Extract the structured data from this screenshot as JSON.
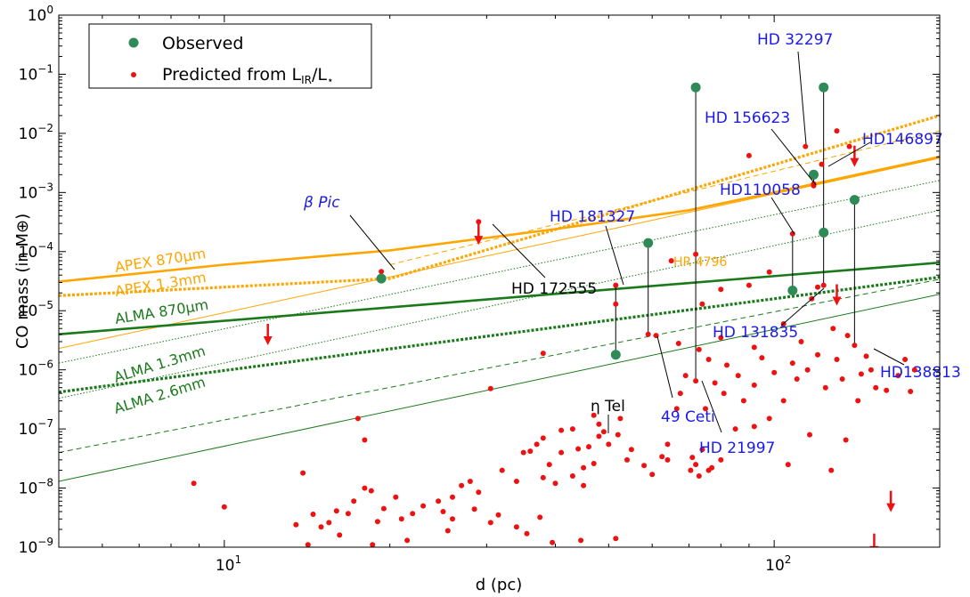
{
  "chart_data": {
    "type": "scatter",
    "xlabel": "d (pc)",
    "ylabel": "CO mass (in M⊕)",
    "x_scale": "log",
    "y_scale": "log",
    "xlim": [
      5.0,
      200.0
    ],
    "ylim": [
      1e-09,
      1.0
    ],
    "grid": false,
    "legend_position": "top-left",
    "colors": {
      "observed": "#2e8b57",
      "predicted": "#ee1111",
      "apex": "#ffa500",
      "alma": "#1a7a1a",
      "star_label": "#1a1aee",
      "axis": "#000000"
    },
    "x_tick_labels": [
      {
        "value": 10,
        "base": "10",
        "exp": "1"
      },
      {
        "value": 100,
        "base": "10",
        "exp": "2"
      }
    ],
    "y_tick_labels": [
      {
        "value": 1e-09,
        "base": "10",
        "exp": "−9"
      },
      {
        "value": 1e-08,
        "base": "10",
        "exp": "−8"
      },
      {
        "value": 1e-07,
        "base": "10",
        "exp": "−7"
      },
      {
        "value": 1e-06,
        "base": "10",
        "exp": "−6"
      },
      {
        "value": 1e-05,
        "base": "10",
        "exp": "−5"
      },
      {
        "value": 0.0001,
        "base": "10",
        "exp": "−4"
      },
      {
        "value": 0.001,
        "base": "10",
        "exp": "−3"
      },
      {
        "value": 0.01,
        "base": "10",
        "exp": "−2"
      },
      {
        "value": 0.1,
        "base": "10",
        "exp": "−1"
      },
      {
        "value": 1,
        "base": "10",
        "exp": "0"
      }
    ],
    "legend": [
      {
        "kind": "observed",
        "label": "Observed"
      },
      {
        "kind": "predicted",
        "label": "Predicted from L",
        "sub": "IR",
        "label_mid": "/L",
        "sub2": "⋆"
      }
    ],
    "sensitivity_lines": [
      {
        "label": "APEX 870μm",
        "color": "#ffa500",
        "style": "solid",
        "width": 2.6,
        "x": [
          5.0,
          10.0,
          20.0,
          40.0,
          70.0,
          100.0,
          200.0
        ],
        "y": [
          3.1e-05,
          6e-05,
          0.000105,
          0.00024,
          0.0005,
          0.001,
          0.004
        ]
      },
      {
        "label": "APEX 1.3mm",
        "color": "#ffa500",
        "style": "dotted",
        "width": 3.2,
        "x": [
          5.0,
          20.0,
          200.0
        ],
        "y": [
          1.8e-05,
          3.5e-05,
          0.02
        ]
      },
      {
        "label": "",
        "color": "#ffa500",
        "style": "dashed",
        "width": 1.0,
        "x": [
          20.0,
          200.0
        ],
        "y": [
          6e-05,
          0.011
        ]
      },
      {
        "label": "",
        "color": "#ffa500",
        "style": "solid",
        "width": 1.0,
        "x": [
          5.0,
          200.0
        ],
        "y": [
          2.3e-06,
          0.0038
        ]
      },
      {
        "label": "ALMA 870μm",
        "color": "#1a7a1a",
        "style": "solid",
        "width": 2.6,
        "x": [
          5.0,
          200.0
        ],
        "y": [
          4e-06,
          6.5e-05
        ]
      },
      {
        "label": "ALMA 1.3mm",
        "color": "#1a7a1a",
        "style": "dotted",
        "width": 3.2,
        "x": [
          5.0,
          200.0
        ],
        "y": [
          4.2e-07,
          3.7e-05
        ]
      },
      {
        "label": "ALMA 2.6mm",
        "color": "#1a7a1a",
        "style": "dotted",
        "width": 1.0,
        "x": [
          5.0,
          200.0
        ],
        "y": [
          3.3e-07,
          0.0005
        ]
      },
      {
        "label": "",
        "color": "#1a7a1a",
        "style": "dotted",
        "width": 1.0,
        "x": [
          5.0,
          200.0
        ],
        "y": [
          1.3e-06,
          0.0016
        ]
      },
      {
        "label": "",
        "color": "#1a7a1a",
        "style": "dashed",
        "width": 1.0,
        "x": [
          5.0,
          200.0
        ],
        "y": [
          4e-08,
          3.4e-05
        ]
      },
      {
        "label": "",
        "color": "#1a7a1a",
        "style": "solid",
        "width": 1.0,
        "x": [
          5.0,
          200.0
        ],
        "y": [
          1.3e-08,
          1.9e-05
        ]
      }
    ],
    "observed_points": [
      {
        "x": 19.3,
        "y": 3.5e-05
      },
      {
        "x": 51.5,
        "y": 1.8e-06
      },
      {
        "x": 59.0,
        "y": 0.00014
      },
      {
        "x": 72.0,
        "y": 0.06
      },
      {
        "x": 108.0,
        "y": 2.2e-05
      },
      {
        "x": 118.0,
        "y": 0.002
      },
      {
        "x": 123.0,
        "y": 0.06
      },
      {
        "x": 123.0,
        "y": 0.00021
      },
      {
        "x": 140.0,
        "y": 0.00075
      }
    ],
    "vertical_links": [
      {
        "x": 51.5,
        "y": [
          1.8e-06,
          2.7e-05
        ]
      },
      {
        "x": 59.0,
        "y": [
          4e-06,
          0.00014
        ]
      },
      {
        "x": 72.0,
        "y": [
          6.5e-07,
          0.06
        ]
      },
      {
        "x": 108.0,
        "y": [
          0.0002,
          2.2e-05
        ]
      },
      {
        "x": 118.0,
        "y": [
          0.0013,
          0.002
        ]
      },
      {
        "x": 123.0,
        "y": [
          2.7e-05,
          0.06
        ]
      },
      {
        "x": 140.0,
        "y": [
          2.6e-06,
          0.00075
        ]
      }
    ],
    "upper_limits": [
      {
        "x": 12.0,
        "y": 6e-06
      },
      {
        "x": 29.0,
        "y": 0.0003
      },
      {
        "x": 130.0,
        "y": 2.8e-05
      },
      {
        "x": 140.0,
        "y": 0.0062
      },
      {
        "x": 163.0,
        "y": 9e-09
      },
      {
        "x": 152.0,
        "y": 1.7e-09
      }
    ],
    "predicted_points": [
      {
        "x": 19.3,
        "y": 4.6e-05
      },
      {
        "x": 29.0,
        "y": 0.00032
      },
      {
        "x": 51.5,
        "y": 2.7e-05
      },
      {
        "x": 51.5,
        "y": 1.3e-05
      },
      {
        "x": 59.0,
        "y": 4e-06
      },
      {
        "x": 72.0,
        "y": 6.5e-07
      },
      {
        "x": 108.0,
        "y": 0.0002
      },
      {
        "x": 118.0,
        "y": 0.0013
      },
      {
        "x": 123.0,
        "y": 2.7e-05
      },
      {
        "x": 140.0,
        "y": 2.6e-06
      },
      {
        "x": 114.0,
        "y": 0.006
      },
      {
        "x": 122.0,
        "y": 0.003
      },
      {
        "x": 137.0,
        "y": 0.006
      },
      {
        "x": 118.0,
        "y": 0.0014
      },
      {
        "x": 130.0,
        "y": 0.011
      },
      {
        "x": 90.0,
        "y": 0.0042
      },
      {
        "x": 65.0,
        "y": 7e-05
      },
      {
        "x": 72.0,
        "y": 9e-05
      },
      {
        "x": 98.0,
        "y": 4.5e-05
      },
      {
        "x": 74.0,
        "y": 1.3e-05
      },
      {
        "x": 80.0,
        "y": 2.3e-05
      },
      {
        "x": 90.0,
        "y": 2.7e-05
      },
      {
        "x": 120.0,
        "y": 2.5e-05
      },
      {
        "x": 117.0,
        "y": 1.6e-05
      },
      {
        "x": 128.0,
        "y": 5e-06
      },
      {
        "x": 136.0,
        "y": 3.8e-06
      },
      {
        "x": 104.0,
        "y": 6e-06
      },
      {
        "x": 112.0,
        "y": 3e-06
      },
      {
        "x": 80.0,
        "y": 3.5e-06
      },
      {
        "x": 67.0,
        "y": 2.8e-06
      },
      {
        "x": 73.0,
        "y": 2.2e-06
      },
      {
        "x": 92.0,
        "y": 2.4e-06
      },
      {
        "x": 76.0,
        "y": 1.5e-06
      },
      {
        "x": 82.0,
        "y": 1.2e-06
      },
      {
        "x": 95.0,
        "y": 1.6e-06
      },
      {
        "x": 108.0,
        "y": 1.3e-06
      },
      {
        "x": 120.0,
        "y": 1.8e-06
      },
      {
        "x": 130.0,
        "y": 1.5e-06
      },
      {
        "x": 86.0,
        "y": 8e-07
      },
      {
        "x": 92.0,
        "y": 5.5e-07
      },
      {
        "x": 100.0,
        "y": 9e-07
      },
      {
        "x": 115.0,
        "y": 1e-06
      },
      {
        "x": 124.0,
        "y": 5e-07
      },
      {
        "x": 144.0,
        "y": 8.5e-07
      },
      {
        "x": 153.0,
        "y": 5e-07
      },
      {
        "x": 160.0,
        "y": 4.5e-07
      },
      {
        "x": 168.0,
        "y": 8e-07
      },
      {
        "x": 173.0,
        "y": 1.5e-06
      },
      {
        "x": 180.0,
        "y": 1e-06
      },
      {
        "x": 177.0,
        "y": 4.3e-07
      },
      {
        "x": 110.0,
        "y": 7e-07
      },
      {
        "x": 133.0,
        "y": 7e-07
      },
      {
        "x": 142.0,
        "y": 3e-07
      },
      {
        "x": 104.0,
        "y": 3e-07
      },
      {
        "x": 150.0,
        "y": 1e-06
      },
      {
        "x": 78.0,
        "y": 6e-07
      },
      {
        "x": 81.0,
        "y": 4e-07
      },
      {
        "x": 88.0,
        "y": 3e-07
      },
      {
        "x": 98.0,
        "y": 1.5e-07
      },
      {
        "x": 135.0,
        "y": 6.5e-08
      },
      {
        "x": 147.0,
        "y": 1.7e-06
      },
      {
        "x": 106.0,
        "y": 2.5e-08
      },
      {
        "x": 116.0,
        "y": 8e-08
      },
      {
        "x": 127.0,
        "y": 2e-08
      },
      {
        "x": 92.0,
        "y": 1.1e-07
      },
      {
        "x": 80.0,
        "y": 3e-08
      },
      {
        "x": 74.0,
        "y": 4.5e-08
      },
      {
        "x": 71.0,
        "y": 3.3e-08
      },
      {
        "x": 72.0,
        "y": 2.5e-08
      },
      {
        "x": 73.0,
        "y": 1.6e-08
      },
      {
        "x": 76.0,
        "y": 2e-08
      },
      {
        "x": 70.5,
        "y": 2e-08
      },
      {
        "x": 85.0,
        "y": 1e-07
      },
      {
        "x": 60.0,
        "y": 1.7e-08
      },
      {
        "x": 58.0,
        "y": 2.4e-08
      },
      {
        "x": 55.0,
        "y": 4.5e-08
      },
      {
        "x": 52.0,
        "y": 8e-08
      },
      {
        "x": 48.0,
        "y": 1.2e-07
      },
      {
        "x": 46.0,
        "y": 5e-08
      },
      {
        "x": 44.0,
        "y": 4.6e-08
      },
      {
        "x": 45.0,
        "y": 2.2e-08
      },
      {
        "x": 47.0,
        "y": 2.6e-08
      },
      {
        "x": 48.0,
        "y": 7.5e-08
      },
      {
        "x": 43.0,
        "y": 1.6e-08
      },
      {
        "x": 41.0,
        "y": 4e-08
      },
      {
        "x": 40.0,
        "y": 1.2e-08
      },
      {
        "x": 38.0,
        "y": 7e-08
      },
      {
        "x": 37.0,
        "y": 5.5e-08
      },
      {
        "x": 36.0,
        "y": 4.2e-08
      },
      {
        "x": 35.0,
        "y": 4e-08
      },
      {
        "x": 39.0,
        "y": 2.5e-08
      },
      {
        "x": 38.0,
        "y": 1.5e-08
      },
      {
        "x": 34.0,
        "y": 1.3e-08
      },
      {
        "x": 32.0,
        "y": 2e-08
      },
      {
        "x": 29.0,
        "y": 8.5e-09
      },
      {
        "x": 27.0,
        "y": 1.1e-08
      },
      {
        "x": 28.0,
        "y": 1.3e-08
      },
      {
        "x": 26.0,
        "y": 7e-09
      },
      {
        "x": 25.0,
        "y": 4e-09
      },
      {
        "x": 26.0,
        "y": 3e-09
      },
      {
        "x": 24.5,
        "y": 6e-09
      },
      {
        "x": 23.0,
        "y": 5e-09
      },
      {
        "x": 22.0,
        "y": 3.7e-09
      },
      {
        "x": 21.0,
        "y": 3e-09
      },
      {
        "x": 20.5,
        "y": 7e-09
      },
      {
        "x": 19.5,
        "y": 4.5e-09
      },
      {
        "x": 19.0,
        "y": 2.7e-09
      },
      {
        "x": 18.5,
        "y": 9e-09
      },
      {
        "x": 18.0,
        "y": 1e-08
      },
      {
        "x": 17.2,
        "y": 6e-09
      },
      {
        "x": 16.8,
        "y": 3.7e-09
      },
      {
        "x": 16.0,
        "y": 4.1e-09
      },
      {
        "x": 15.5,
        "y": 2.6e-09
      },
      {
        "x": 15.0,
        "y": 2.2e-09
      },
      {
        "x": 14.5,
        "y": 3.6e-09
      },
      {
        "x": 16.2,
        "y": 1.6e-09
      },
      {
        "x": 18.6,
        "y": 1.1e-09
      },
      {
        "x": 21.5,
        "y": 1.3e-09
      },
      {
        "x": 14.2,
        "y": 1.1e-09
      },
      {
        "x": 13.5,
        "y": 2.4e-09
      },
      {
        "x": 17.5,
        "y": 1.5e-07
      },
      {
        "x": 18.0,
        "y": 6.5e-08
      },
      {
        "x": 13.9,
        "y": 1.8e-08
      },
      {
        "x": 8.8,
        "y": 1.2e-08
      },
      {
        "x": 10.0,
        "y": 4.8e-09
      },
      {
        "x": 30.5,
        "y": 2.6e-09
      },
      {
        "x": 25.5,
        "y": 1.9e-09
      },
      {
        "x": 34.0,
        "y": 2.2e-09
      },
      {
        "x": 31.5,
        "y": 3.5e-09
      },
      {
        "x": 28.5,
        "y": 4.4e-09
      },
      {
        "x": 35.5,
        "y": 1.7e-09
      },
      {
        "x": 37.5,
        "y": 3.2e-09
      },
      {
        "x": 39.5,
        "y": 1.2e-09
      },
      {
        "x": 44.5,
        "y": 1.3e-09
      },
      {
        "x": 51.5,
        "y": 1.4e-09
      },
      {
        "x": 30.5,
        "y": 4.8e-07
      },
      {
        "x": 38.0,
        "y": 1.9e-06
      },
      {
        "x": 43.0,
        "y": 1e-07
      },
      {
        "x": 47.0,
        "y": 1.7e-07
      },
      {
        "x": 41.0,
        "y": 9.5e-08
      },
      {
        "x": 50.0,
        "y": 5.5e-08
      },
      {
        "x": 52.5,
        "y": 1.5e-07
      },
      {
        "x": 49.0,
        "y": 9e-08
      },
      {
        "x": 45.0,
        "y": 1.1e-08
      },
      {
        "x": 54.0,
        "y": 3e-08
      },
      {
        "x": 62.5,
        "y": 3.4e-08
      },
      {
        "x": 64.0,
        "y": 3e-08
      },
      {
        "x": 66.5,
        "y": 2.2e-07
      },
      {
        "x": 61.0,
        "y": 3.8e-06
      },
      {
        "x": 67.5,
        "y": 4e-07
      },
      {
        "x": 69.0,
        "y": 8e-07
      },
      {
        "x": 75.0,
        "y": 2.2e-07
      },
      {
        "x": 77.0,
        "y": 2.2e-08
      },
      {
        "x": 64.0,
        "y": 5.5e-08
      }
    ],
    "annotations": [
      {
        "text": "β Pic",
        "color": "#1a1aee",
        "greek": true
      },
      {
        "text": "HD 172555",
        "color": "#000000"
      },
      {
        "text": "HD 181327",
        "color": "#1a1aee"
      },
      {
        "text": "HR 4796",
        "color": "#ffa500"
      },
      {
        "text": "η Tel",
        "color": "#000000"
      },
      {
        "text": "49 Ceti",
        "color": "#1a1aee"
      },
      {
        "text": "HD 21997",
        "color": "#1a1aee"
      },
      {
        "text": "HD 32297",
        "color": "#1a1aee"
      },
      {
        "text": "HD 156623",
        "color": "#1a1aee"
      },
      {
        "text": "HD146897",
        "color": "#1a1aee"
      },
      {
        "text": "HD110058",
        "color": "#1a1aee"
      },
      {
        "text": "HD 131835",
        "color": "#1a1aee"
      },
      {
        "text": "HD138813",
        "color": "#1a1aee"
      }
    ]
  }
}
